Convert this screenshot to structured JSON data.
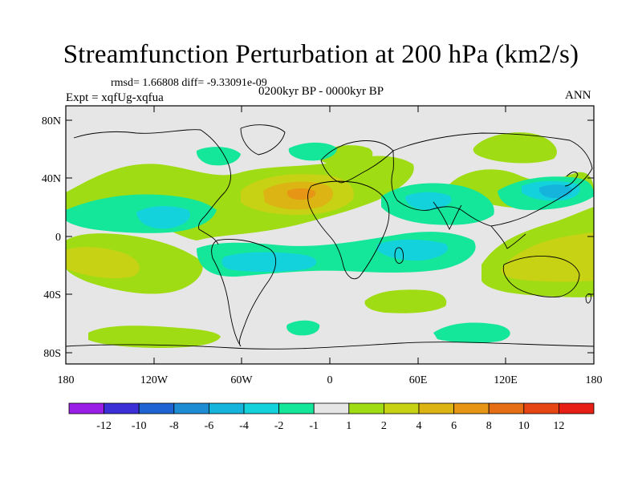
{
  "header": {
    "title": "Streamfunction Perturbation at 200 hPa (km2/s)",
    "stats": "rmsd= 1.66808 diff= -9.33091e-09",
    "period": "0200kyr BP - 0000kyr BP",
    "experiment": "Expt = xqfUg-xqfua",
    "season": "ANN"
  },
  "map": {
    "projection": "cylindrical equidistant",
    "lat_labels": [
      "80N",
      "40N",
      "0",
      "40S",
      "80S"
    ],
    "lon_labels": [
      "180",
      "120W",
      "60W",
      "0",
      "60E",
      "120E",
      "180"
    ],
    "background_color": "#e6e6e6",
    "coast_color": "#000000"
  },
  "colorbar": {
    "labels": [
      "-12",
      "-10",
      "-8",
      "-6",
      "-4",
      "-2",
      "-1",
      "1",
      "2",
      "4",
      "6",
      "8",
      "10",
      "12"
    ],
    "colors": [
      "#9a1ee6",
      "#3c2fd6",
      "#1e64d2",
      "#1e8cd2",
      "#14b4dc",
      "#14d2dc",
      "#14e69a",
      "#e6e6e6",
      "#a0dc14",
      "#c8d214",
      "#dcb414",
      "#e69614",
      "#e66e14",
      "#e64614",
      "#e61e14"
    ]
  },
  "chart_data": {
    "type": "filled-contour map",
    "title": "Streamfunction Perturbation at 200 hPa (km2/s)",
    "units": "km2/s",
    "xlim_deg": [
      -180,
      180
    ],
    "ylim_deg": [
      -90,
      90
    ],
    "levels": [
      -12,
      -10,
      -8,
      -6,
      -4,
      -2,
      -1,
      1,
      2,
      4,
      6,
      8,
      10,
      12
    ],
    "features": [
      {
        "name": "North Atlantic / Saharan positive center",
        "lon": -20,
        "lat": 28,
        "value": 6
      },
      {
        "name": "Western Pacific negative center",
        "lon": 150,
        "lat": 30,
        "value": -4
      },
      {
        "name": "Arctic Siberia positive region",
        "lon": 110,
        "lat": 60,
        "value": 2
      },
      {
        "name": "Australia positive region",
        "lon": 150,
        "lat": -25,
        "value": 2
      },
      {
        "name": "Southeast Pacific positive region",
        "lon": -150,
        "lat": -30,
        "value": 2
      },
      {
        "name": "Southern Ocean positive band",
        "lon": -130,
        "lat": -70,
        "value": 2
      },
      {
        "name": "Tropical Pacific negative band",
        "lon": -120,
        "lat": 15,
        "value": -2
      },
      {
        "name": "South Atlantic / Indian negative band",
        "lon": 0,
        "lat": -20,
        "value": -2
      }
    ]
  }
}
